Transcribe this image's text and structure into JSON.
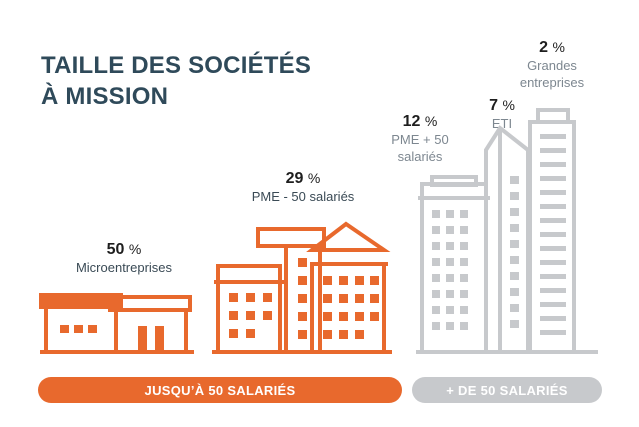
{
  "title": {
    "line1": "TAILLE DES SOCIÉTÉS",
    "line2": "À MISSION"
  },
  "colors": {
    "title": "#2f4a5a",
    "orange": "#e8692d",
    "grey": "#c7c9cc",
    "grey_text": "#7d8790"
  },
  "segments": [
    {
      "percent": "50",
      "unit": "%",
      "label_lines": [
        "Microentreprises"
      ]
    },
    {
      "percent": "29",
      "unit": "%",
      "label_lines": [
        "PME - 50 salariés"
      ]
    },
    {
      "percent": "12",
      "unit": "%",
      "label_lines": [
        "PME + 50",
        "salariés"
      ]
    },
    {
      "percent": "7",
      "unit": "%",
      "label_lines": [
        "ETI"
      ]
    },
    {
      "percent": "2",
      "unit": "%",
      "label_lines": [
        "Grandes",
        "entreprises"
      ]
    }
  ],
  "groups": {
    "small": "JUSQU’À 50 SALARIÉS",
    "large": "+ DE 50 SALARIÉS"
  }
}
